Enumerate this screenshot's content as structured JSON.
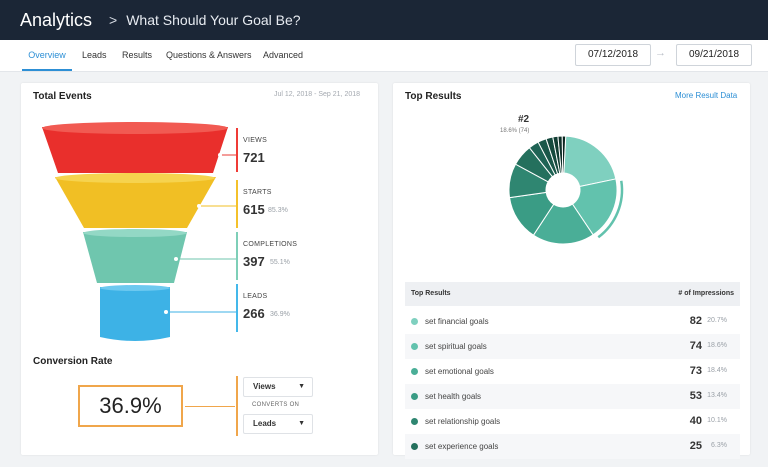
{
  "header": {
    "app_title": "Analytics",
    "separator": ">",
    "page_title": "What Should Your Goal Be?"
  },
  "tabs": [
    "Overview",
    "Leads",
    "Results",
    "Questions & Answers",
    "Advanced"
  ],
  "dates": {
    "start": "07/12/2018",
    "end": "09/21/2018",
    "arrow": "→"
  },
  "total_events": {
    "title": "Total Events",
    "range": "Jul 12, 2018 - Sep 21, 2018",
    "metrics": [
      {
        "label": "VIEWS",
        "value": "721",
        "pct": "",
        "color": "#ef3b36"
      },
      {
        "label": "STARTS",
        "value": "615",
        "pct": "85.3%",
        "color": "#f4c12b"
      },
      {
        "label": "COMPLETIONS",
        "value": "397",
        "pct": "55.1%",
        "color": "#7ecfb8"
      },
      {
        "label": "LEADS",
        "value": "266",
        "pct": "36.9%",
        "color": "#44b8ea"
      }
    ]
  },
  "conversion": {
    "title": "Conversion Rate",
    "value": "36.9%",
    "from": "Views",
    "converts_on": "CONVERTS ON",
    "to": "Leads",
    "accent": "#f0a64b"
  },
  "top_results": {
    "title": "Top Results",
    "link": "More Result Data",
    "callout": {
      "rank": "#2",
      "detail": "18.6% (74)"
    },
    "table_header": {
      "col1": "Top Results",
      "col2": "# of Impressions"
    },
    "rows": [
      {
        "label": "set financial goals",
        "value": "82",
        "pct": "20.7%",
        "color": "#7fd0bf"
      },
      {
        "label": "set spiritual goals",
        "value": "74",
        "pct": "18.6%",
        "color": "#62c2ad"
      },
      {
        "label": "set emotional goals",
        "value": "73",
        "pct": "18.4%",
        "color": "#4aae97"
      },
      {
        "label": "set health goals",
        "value": "53",
        "pct": "13.4%",
        "color": "#3a9c85"
      },
      {
        "label": "set relationship goals",
        "value": "40",
        "pct": "10.1%",
        "color": "#2f8671"
      },
      {
        "label": "set experience goals",
        "value": "25",
        "pct": "6.3%",
        "color": "#24705d"
      }
    ]
  }
}
